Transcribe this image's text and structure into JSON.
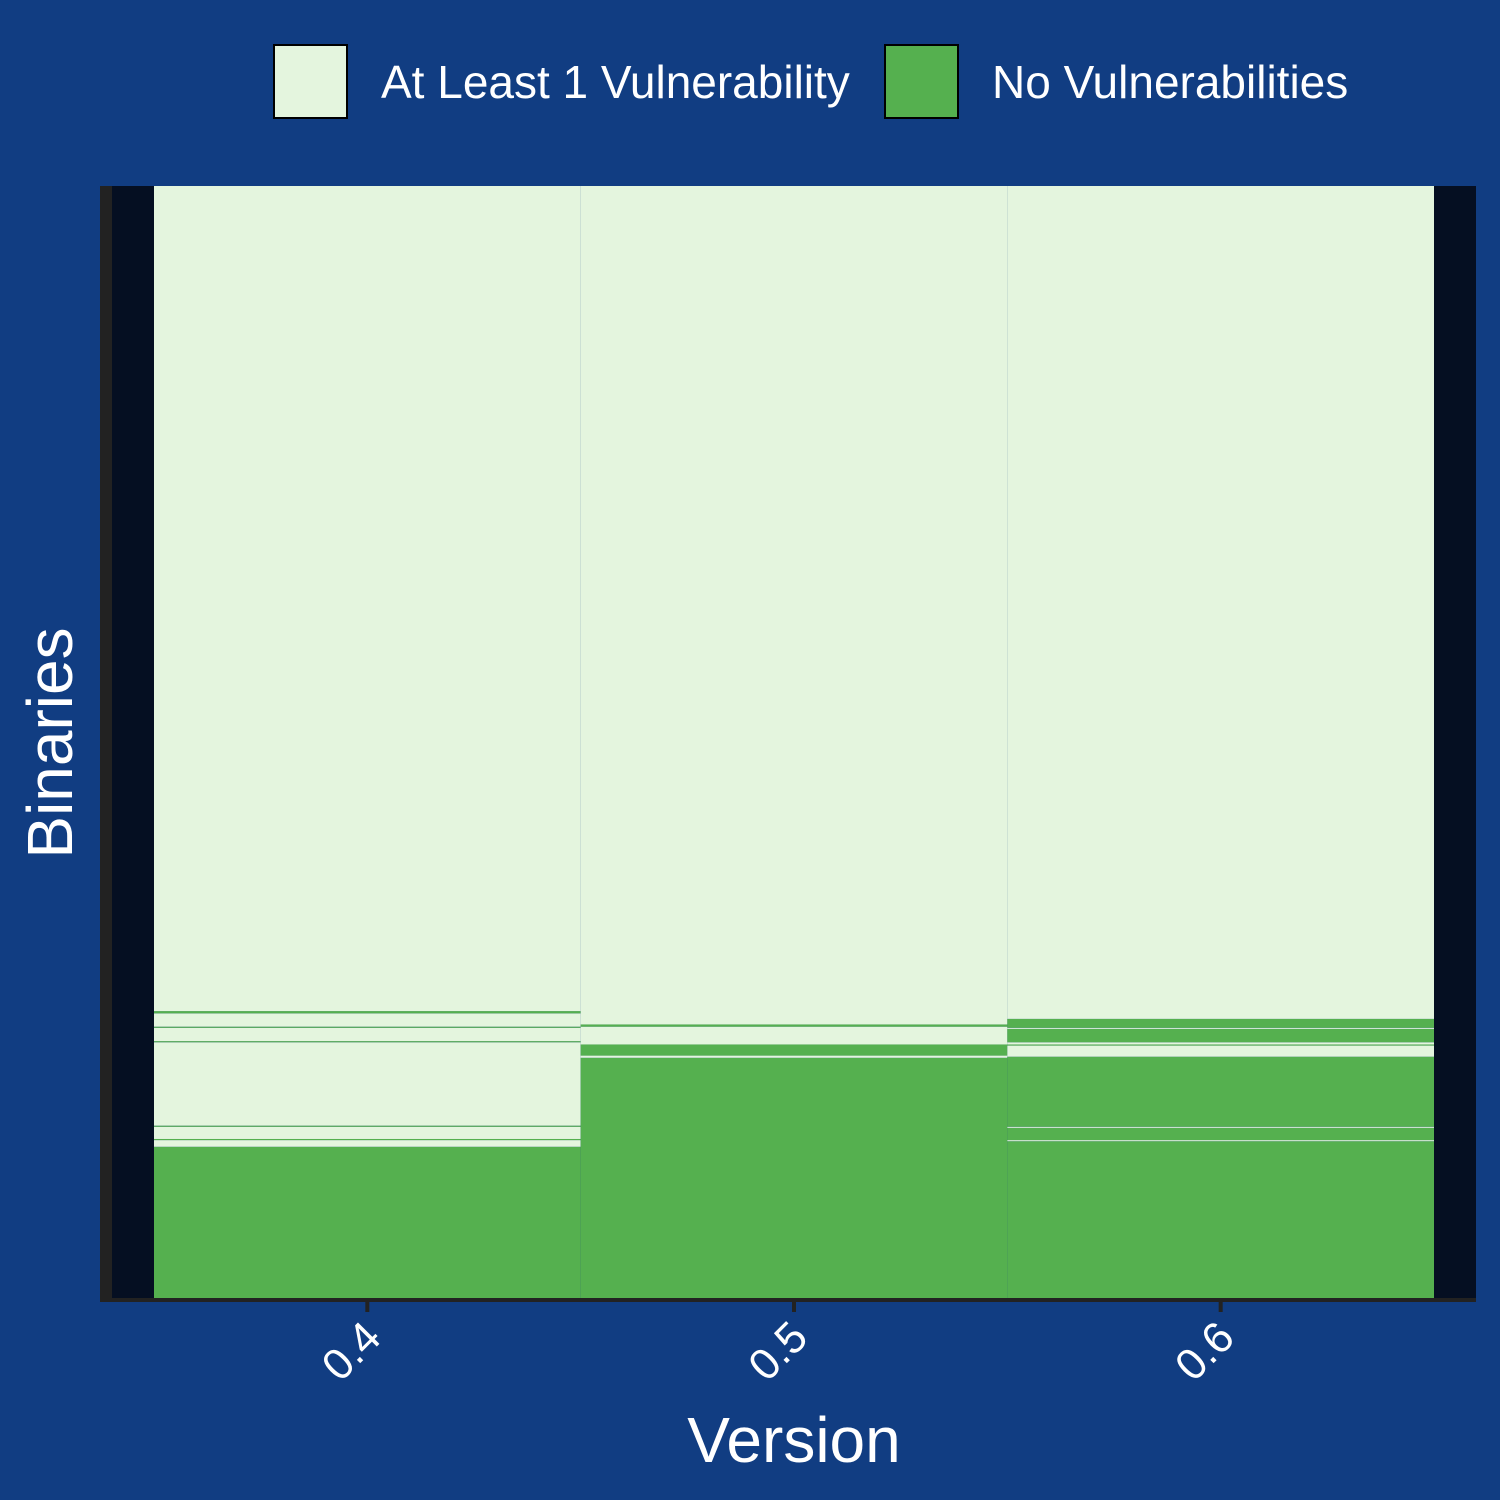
{
  "chart_data": {
    "type": "bar",
    "stacked": true,
    "xlabel": "Version",
    "ylabel": "Binaries",
    "categories": [
      "0.4",
      "0.5",
      "0.6"
    ],
    "legend_position": "top",
    "grid": false,
    "series": [
      {
        "name": "No Vulnerabilities",
        "color": "#55b04f"
      },
      {
        "name": "At Least 1 Vulnerability",
        "color": "#e4f5de"
      }
    ],
    "legend_entries": [
      {
        "label": "At Least 1 Vulnerability",
        "color": "#e4f5de"
      },
      {
        "label": "No Vulnerabilities",
        "color": "#55b04f"
      }
    ],
    "columns": [
      {
        "version": "0.4",
        "segments_bottom_to_top": [
          {
            "status": "No Vulnerabilities",
            "share": 0.136
          },
          {
            "status": "At Least 1 Vulnerability",
            "share": 0.006
          },
          {
            "status": "No Vulnerabilities",
            "share": 0.001
          },
          {
            "status": "At Least 1 Vulnerability",
            "share": 0.011
          },
          {
            "status": "No Vulnerabilities",
            "share": 0.001
          },
          {
            "status": "At Least 1 Vulnerability",
            "share": 0.075
          },
          {
            "status": "No Vulnerabilities",
            "share": 0.001
          },
          {
            "status": "At Least 1 Vulnerability",
            "share": 0.012
          },
          {
            "status": "No Vulnerabilities",
            "share": 0.001
          },
          {
            "status": "At Least 1 Vulnerability",
            "share": 0.012
          },
          {
            "status": "No Vulnerabilities",
            "share": 0.002
          },
          {
            "status": "At Least 1 Vulnerability",
            "share": 0.742
          }
        ]
      },
      {
        "version": "0.5",
        "segments_bottom_to_top": [
          {
            "status": "No Vulnerabilities",
            "share": 0.216
          },
          {
            "status": "At Least 1 Vulnerability",
            "share": 0.002
          },
          {
            "status": "No Vulnerabilities",
            "share": 0.01
          },
          {
            "status": "At Least 1 Vulnerability",
            "share": 0.016
          },
          {
            "status": "No Vulnerabilities",
            "share": 0.002
          },
          {
            "status": "At Least 1 Vulnerability",
            "share": 0.754
          }
        ]
      },
      {
        "version": "0.6",
        "segments_bottom_to_top": [
          {
            "status": "No Vulnerabilities",
            "share": 0.141
          },
          {
            "status": "At Least 1 Vulnerability",
            "share": 0.001
          },
          {
            "status": "No Vulnerabilities",
            "share": 0.011
          },
          {
            "status": "At Least 1 Vulnerability",
            "share": 0.001
          },
          {
            "status": "No Vulnerabilities",
            "share": 0.063
          },
          {
            "status": "At Least 1 Vulnerability",
            "share": 0.01
          },
          {
            "status": "No Vulnerabilities",
            "share": 0.001
          },
          {
            "status": "At Least 1 Vulnerability",
            "share": 0.002
          },
          {
            "status": "No Vulnerabilities",
            "share": 0.012
          },
          {
            "status": "At Least 1 Vulnerability",
            "share": 0.001
          },
          {
            "status": "No Vulnerabilities",
            "share": 0.008
          },
          {
            "status": "At Least 1 Vulnerability",
            "share": 0.749
          }
        ]
      }
    ]
  },
  "theme": {
    "background": "#113d82",
    "panel_side": "#050f22",
    "axis": "#222222",
    "text": "#ffffff"
  }
}
